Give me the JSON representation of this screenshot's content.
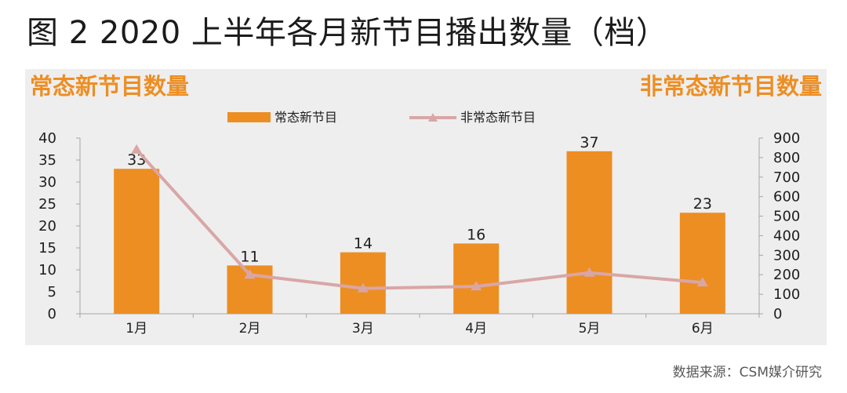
{
  "figure": {
    "title": "图 2  2020 上半年各月新节目播出数量（档）",
    "source": "数据来源：CSM媒介研究"
  },
  "colors": {
    "bar": "#ed8e23",
    "line": "#d9a6a6",
    "axis_heading": "#ed8e23",
    "text": "#1e1e1e",
    "axis": "#a6a6a6",
    "panel_bg": "#eeeeee"
  },
  "chart_data": {
    "type": "bar",
    "title": "",
    "left_axis_title": "常态新节目数量",
    "right_axis_title": "非常态新节目数量",
    "categories": [
      "1月",
      "2月",
      "3月",
      "4月",
      "5月",
      "6月"
    ],
    "series": [
      {
        "name": "常态新节目",
        "type": "bar",
        "axis": "left",
        "values": [
          33,
          11,
          14,
          16,
          37,
          23
        ],
        "data_labels": true
      },
      {
        "name": "非常态新节目",
        "type": "line",
        "axis": "right",
        "marker": "triangle",
        "values": [
          840,
          200,
          130,
          140,
          210,
          160
        ],
        "data_labels": false
      }
    ],
    "y_left": {
      "range": [
        0,
        40
      ],
      "ticks": [
        0,
        5,
        10,
        15,
        20,
        25,
        30,
        35,
        40
      ]
    },
    "y_right": {
      "range": [
        0,
        900
      ],
      "ticks": [
        0,
        100,
        200,
        300,
        400,
        500,
        600,
        700,
        800,
        900
      ]
    },
    "grid": false,
    "legend_position": "top"
  }
}
